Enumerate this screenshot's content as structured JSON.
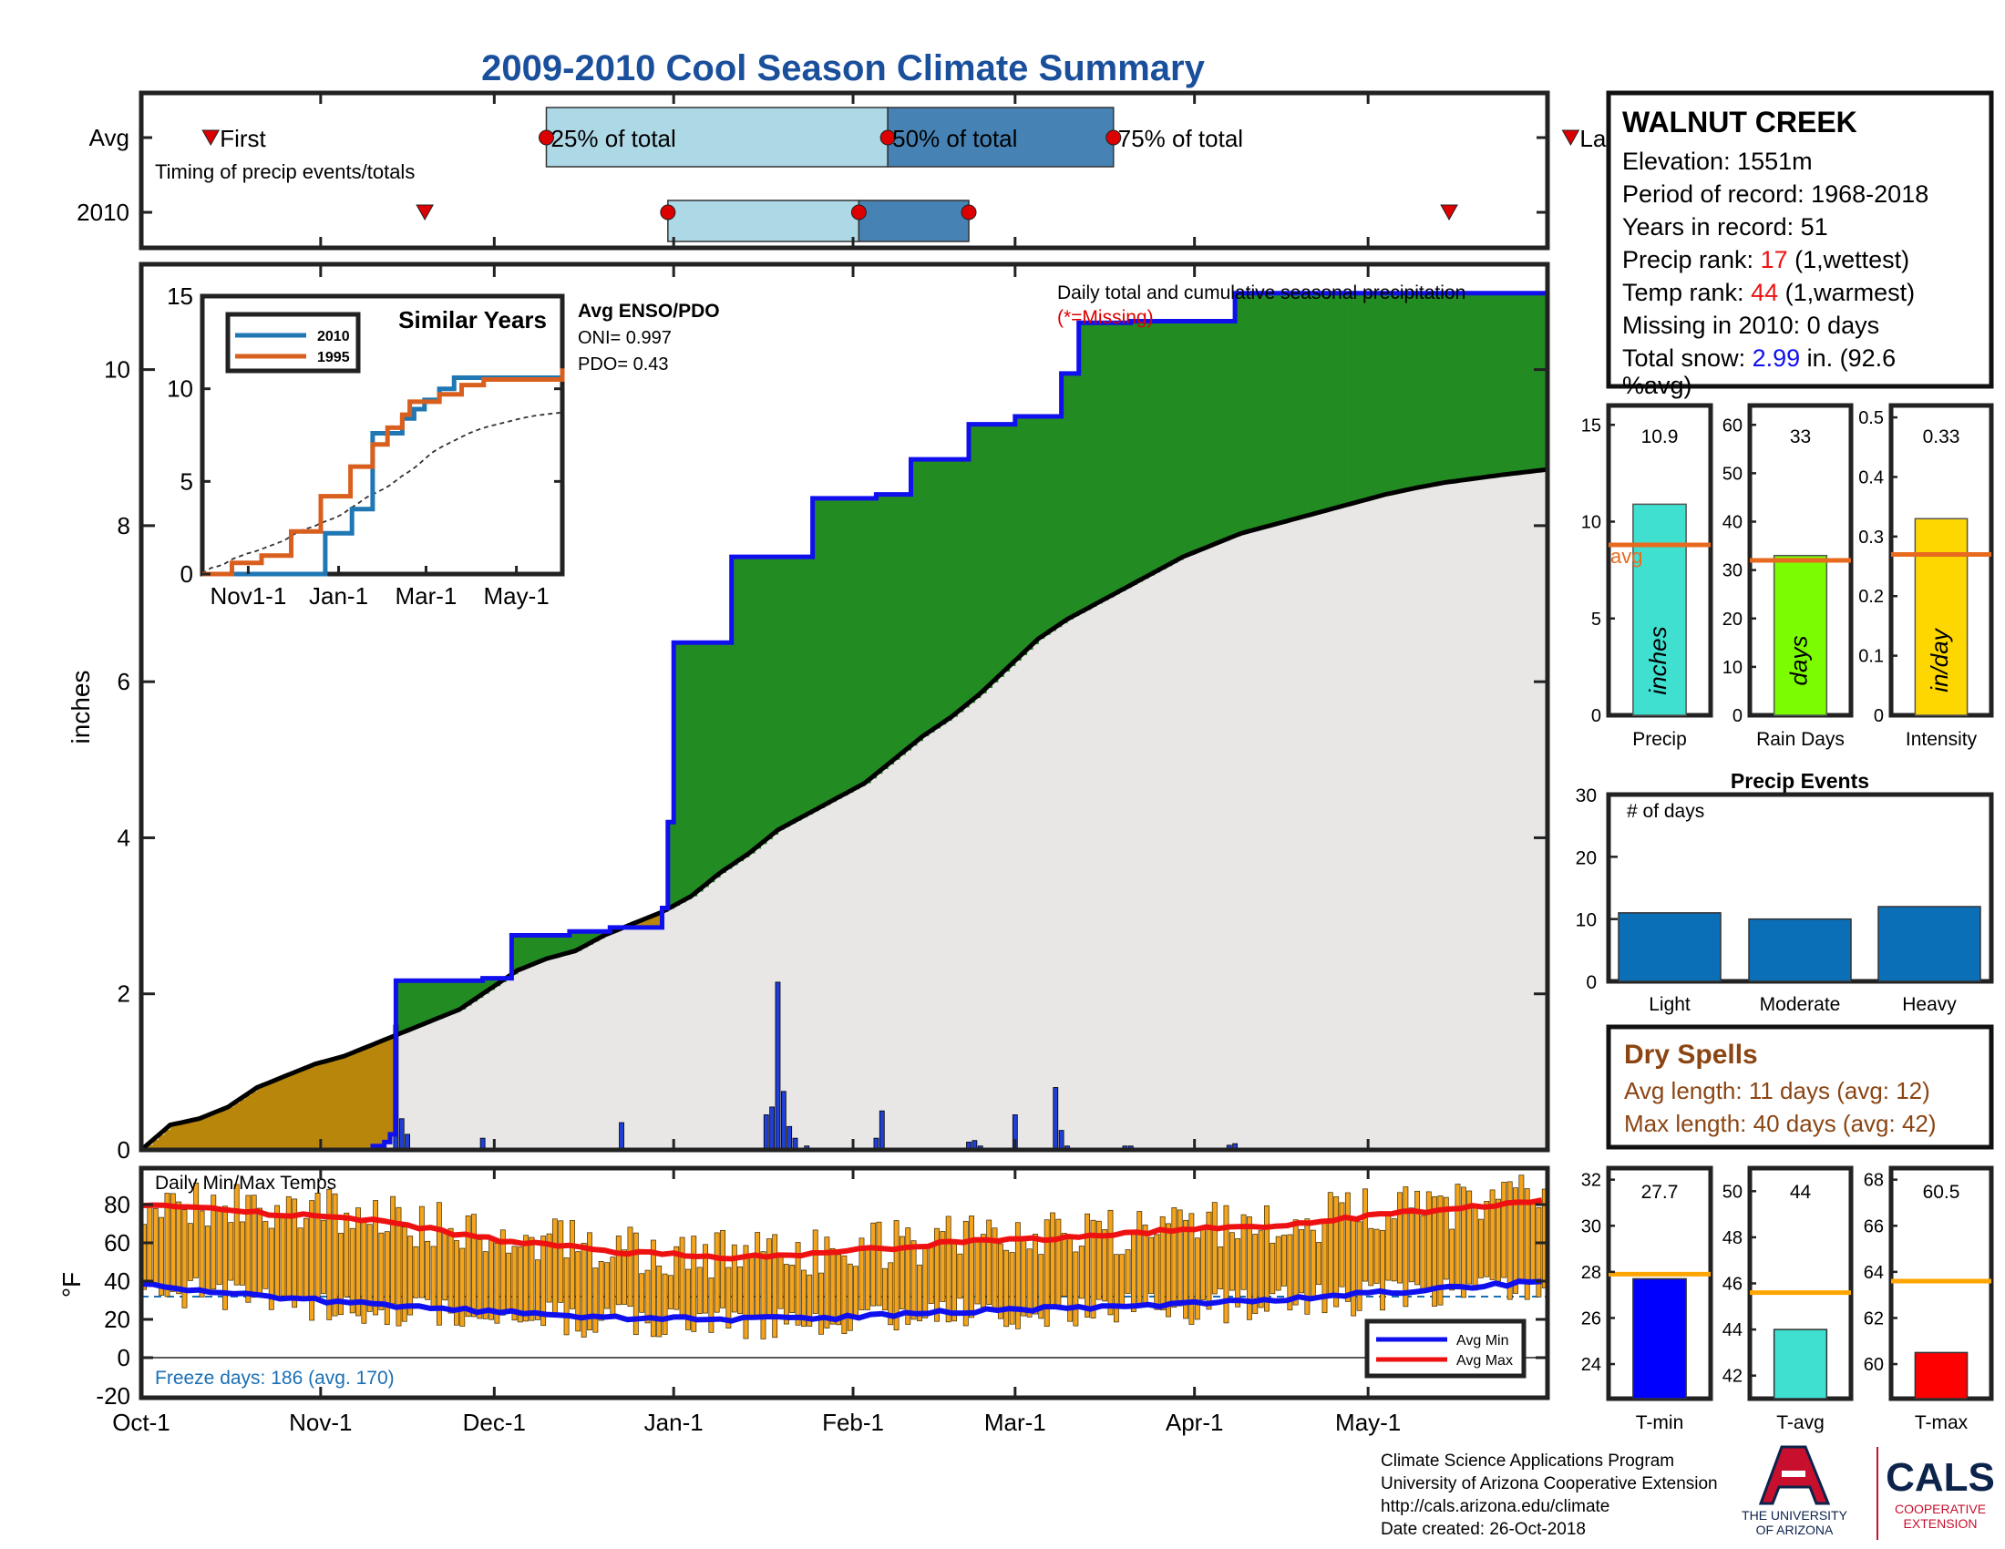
{
  "title": "2009-2010 Cool Season Climate Summary",
  "colors": {
    "title": "#1a4f9c",
    "deficit": "#b8860b",
    "surplus": "#228b22",
    "cum_avg_fill": "#e8e7e6",
    "cum_2010_line": "#1010ee",
    "box_light": "#add8e6",
    "box_dark": "#4682b4",
    "marker": "#dd0000",
    "series_2010": "#1f77b4",
    "series_1995": "#d95f1e",
    "temp_bar": "#f3a31c",
    "min_line": "#1010ee",
    "max_line": "#ee1111",
    "precip_bar": "#40e0d0",
    "days_bar": "#7cfc00",
    "intensity_bar": "#ffd700",
    "avg_line": "#e86a1e",
    "events_bar": "#0b6fb8",
    "dry_spells": "#8b4513",
    "freeze": "#1a6fb5",
    "tmin_bar": "#0000ff",
    "tavg_bar": "#40e0d0",
    "tmax_bar": "#ff0000",
    "temp_avg_line": "#ffa500",
    "ua_red": "#c8102e",
    "ua_blue": "#0c234b"
  },
  "timing": {
    "row_labels": [
      "Avg",
      "2010"
    ],
    "labels": [
      "First",
      "25% of total",
      "50% of total",
      "75% of total",
      "Last"
    ],
    "note": "Timing of precip events/totals",
    "avg_days": {
      "first": 12,
      "p25": 70,
      "p50": 129,
      "p75": 168,
      "last": 247
    },
    "yr_days": {
      "first": 49,
      "p25": 91,
      "p50": 124,
      "p75": 143,
      "last": 226
    }
  },
  "main": {
    "ylabel": "inches",
    "yticks": [
      "0",
      "2",
      "4",
      "6",
      "8",
      "10"
    ],
    "xticks": [
      "Oct-1",
      "Nov-1",
      "Dec-1",
      "Jan-1",
      "Feb-1",
      "Mar-1",
      "Apr-1",
      "May-1"
    ],
    "caption": "Daily total and cumulative seasonal precipitation",
    "missing_note": "(*=Missing)",
    "enso_title": "Avg ENSO/PDO",
    "oni": "ONI= 0.997",
    "pdo": "PDO= 0.43"
  },
  "inset": {
    "title": "Similar Years",
    "legend": [
      "2010",
      "1995"
    ],
    "yticks": [
      "0",
      "5",
      "10",
      "15"
    ],
    "xticks": [
      "Nov1-1",
      "Jan-1",
      "Mar-1",
      "May-1"
    ]
  },
  "temps": {
    "title": "Daily Min/Max Temps",
    "ylabel": "°F",
    "yticks": [
      "-20",
      "0",
      "20",
      "40",
      "60",
      "80"
    ],
    "freeze": "Freeze days: 186 (avg. 170)",
    "legend": [
      "Avg Min",
      "Avg Max"
    ]
  },
  "station": {
    "name": "WALNUT CREEK",
    "elevation": "Elevation: 1551m",
    "period": "Period of record: 1968-2018",
    "years": "Years in record: 51",
    "precip_rank_pre": "Precip rank: ",
    "precip_rank": "17",
    "precip_rank_post": " (1,wettest)",
    "temp_rank_pre": "Temp rank: ",
    "temp_rank": "44",
    "temp_rank_post": " (1,warmest)",
    "missing": "Missing in 2010: 0 days",
    "snow_pre": "Total snow: ",
    "snow": "2.99",
    "snow_post": " in. (92.6",
    "snow_post2": "%avg)"
  },
  "stats": {
    "precip": {
      "value_label": "10.9",
      "unit": "inches",
      "xlabel": "Precip",
      "avg_label": "avg",
      "yticks": [
        "0",
        "5",
        "10",
        "15"
      ]
    },
    "days": {
      "value_label": "33",
      "unit": "days",
      "xlabel": "Rain Days",
      "yticks": [
        "0",
        "10",
        "20",
        "30",
        "40",
        "50",
        "60"
      ]
    },
    "intensity": {
      "value_label": "0.33",
      "unit": "in/day",
      "xlabel": "Intensity",
      "yticks": [
        "0",
        "0.1",
        "0.2",
        "0.3",
        "0.4",
        "0.5"
      ]
    }
  },
  "events": {
    "title": "Precip Events",
    "note": "# of days",
    "yticks": [
      "0",
      "10",
      "20",
      "30"
    ],
    "categories": [
      "Light",
      "Moderate",
      "Heavy"
    ]
  },
  "dry": {
    "title": "Dry Spells",
    "avg": "Avg length: 11 days (avg: 12)",
    "max": "Max length: 40 days (avg: 42)"
  },
  "tstats": {
    "tmin": {
      "value_label": "27.7",
      "xlabel": "T-min",
      "yticks": [
        "24",
        "26",
        "28",
        "30",
        "32"
      ]
    },
    "tavg": {
      "value_label": "44",
      "xlabel": "T-avg",
      "yticks": [
        "42",
        "44",
        "46",
        "48",
        "50"
      ]
    },
    "tmax": {
      "value_label": "60.5",
      "xlabel": "T-max",
      "yticks": [
        "60",
        "62",
        "64",
        "66",
        "68"
      ]
    }
  },
  "footer": {
    "line1": "Climate Science Applications Program",
    "line2": "University of Arizona Cooperative Extension",
    "line3": "http://cals.arizona.edu/climate",
    "line4": " Date created: 26-Oct-2018",
    "ua_line1": "THE UNIVERSITY",
    "ua_line2": "OF ARIZONA",
    "cals": "CALS",
    "cals_line1": "COOPERATIVE",
    "cals_line2": "EXTENSION"
  },
  "chart_data": [
    {
      "type": "area",
      "title": "Daily total and cumulative seasonal precipitation",
      "ylabel": "inches",
      "xlabel": "",
      "ylim": [
        0,
        11.35
      ],
      "xlim_days": [
        0,
        243
      ],
      "x_note": "day index from Oct-1",
      "series": [
        {
          "name": "average cumulative",
          "x": [
            0,
            5,
            10,
            15,
            20,
            25,
            30,
            35,
            40,
            45,
            50,
            55,
            60,
            65,
            70,
            75,
            80,
            85,
            90,
            95,
            100,
            105,
            110,
            115,
            120,
            125,
            130,
            135,
            140,
            145,
            150,
            155,
            160,
            165,
            170,
            175,
            180,
            185,
            190,
            195,
            200,
            205,
            210,
            215,
            220,
            225,
            230,
            235,
            243
          ],
          "y": [
            0.0,
            0.32,
            0.4,
            0.55,
            0.8,
            0.95,
            1.1,
            1.2,
            1.35,
            1.5,
            1.65,
            1.8,
            2.05,
            2.3,
            2.45,
            2.55,
            2.75,
            2.9,
            3.05,
            3.25,
            3.55,
            3.8,
            4.1,
            4.3,
            4.5,
            4.7,
            5.0,
            5.3,
            5.55,
            5.85,
            6.2,
            6.55,
            6.8,
            7.0,
            7.2,
            7.4,
            7.6,
            7.75,
            7.9,
            8.0,
            8.1,
            8.2,
            8.3,
            8.4,
            8.48,
            8.55,
            8.6,
            8.65,
            8.72
          ]
        },
        {
          "name": "2010 cumulative",
          "x": [
            0,
            30,
            40,
            42,
            43,
            44,
            58,
            59,
            63,
            64,
            73,
            74,
            80,
            81,
            89,
            90,
            91,
            92,
            101,
            102,
            103,
            107,
            115,
            116,
            126,
            127,
            132,
            133,
            142,
            143,
            150,
            151,
            158,
            159,
            161,
            162,
            170,
            171,
            188,
            189,
            243
          ],
          "y": [
            0.0,
            0.0,
            0.05,
            0.1,
            0.2,
            2.17,
            2.17,
            2.2,
            2.2,
            2.75,
            2.75,
            2.8,
            2.8,
            2.85,
            2.85,
            3.1,
            4.2,
            6.5,
            6.5,
            7.6,
            7.6,
            7.6,
            7.6,
            8.35,
            8.35,
            8.4,
            8.4,
            8.85,
            8.85,
            9.3,
            9.3,
            9.4,
            9.4,
            9.95,
            9.95,
            10.6,
            10.6,
            10.62,
            10.62,
            10.98,
            10.98
          ]
        },
        {
          "name": "2010 daily",
          "x": [
            44,
            45,
            46,
            59,
            83,
            108,
            109,
            110,
            111,
            112,
            113,
            115,
            127,
            128,
            143,
            144,
            145,
            151,
            158,
            159,
            160,
            170,
            171,
            188,
            189
          ],
          "y": [
            1.6,
            0.4,
            0.2,
            0.15,
            0.35,
            0.45,
            0.55,
            2.15,
            0.75,
            0.3,
            0.15,
            0.05,
            0.15,
            0.5,
            0.1,
            0.12,
            0.05,
            0.45,
            0.8,
            0.25,
            0.05,
            0.05,
            0.05,
            0.06,
            0.08
          ]
        }
      ]
    },
    {
      "type": "line",
      "title": "Similar Years",
      "categories": [
        "Nov1-1",
        "Jan-1",
        "Mar-1",
        "May-1"
      ],
      "ylim": [
        0,
        15
      ],
      "series": [
        {
          "name": "2010",
          "x": [
            0,
            70,
            83,
            101,
            115,
            127,
            135,
            143,
            150,
            160,
            170,
            200,
            243
          ],
          "y": [
            0,
            0,
            2.2,
            3.5,
            7.6,
            7.6,
            8.4,
            8.9,
            9.4,
            10.0,
            10.6,
            10.6,
            11.0
          ]
        },
        {
          "name": "1995",
          "x": [
            0,
            20,
            40,
            60,
            80,
            100,
            115,
            125,
            135,
            140,
            160,
            175,
            190,
            243
          ],
          "y": [
            0,
            0.6,
            1.0,
            2.3,
            4.2,
            5.8,
            7.0,
            7.9,
            8.6,
            9.3,
            9.7,
            10.2,
            10.5,
            11.1
          ]
        }
      ]
    },
    {
      "type": "bar",
      "title": "Daily Min/Max Temps",
      "ylabel": "°F",
      "ylim": [
        -20,
        90
      ],
      "series": [
        {
          "name": "Avg Max",
          "x": [
            0,
            20,
            40,
            60,
            80,
            100,
            120,
            140,
            160,
            180,
            200,
            220,
            243
          ],
          "y": [
            80,
            76,
            72,
            62,
            56,
            52,
            55,
            60,
            63,
            67,
            70,
            76,
            82
          ]
        },
        {
          "name": "Avg Min",
          "x": [
            0,
            20,
            40,
            60,
            80,
            100,
            120,
            140,
            160,
            180,
            200,
            220,
            243
          ],
          "y": [
            39,
            32,
            28,
            24,
            21,
            20,
            21,
            24,
            26,
            28,
            31,
            35,
            40
          ]
        }
      ]
    },
    {
      "type": "bar",
      "title": "Precip / Rain Days / Intensity",
      "categories": [
        "Precip",
        "Rain Days",
        "Intensity"
      ],
      "values": [
        10.9,
        33,
        0.33
      ],
      "averages": [
        8.8,
        32,
        0.27
      ]
    },
    {
      "type": "bar",
      "title": "Precip Events",
      "categories": [
        "Light",
        "Moderate",
        "Heavy"
      ],
      "values": [
        11,
        10,
        12
      ],
      "ylim": [
        0,
        30
      ]
    },
    {
      "type": "bar",
      "title": "T-min / T-avg / T-max",
      "categories": [
        "T-min",
        "T-avg",
        "T-max"
      ],
      "values": [
        27.7,
        44,
        60.5
      ],
      "averages": [
        27.9,
        45.6,
        63.6
      ]
    }
  ]
}
